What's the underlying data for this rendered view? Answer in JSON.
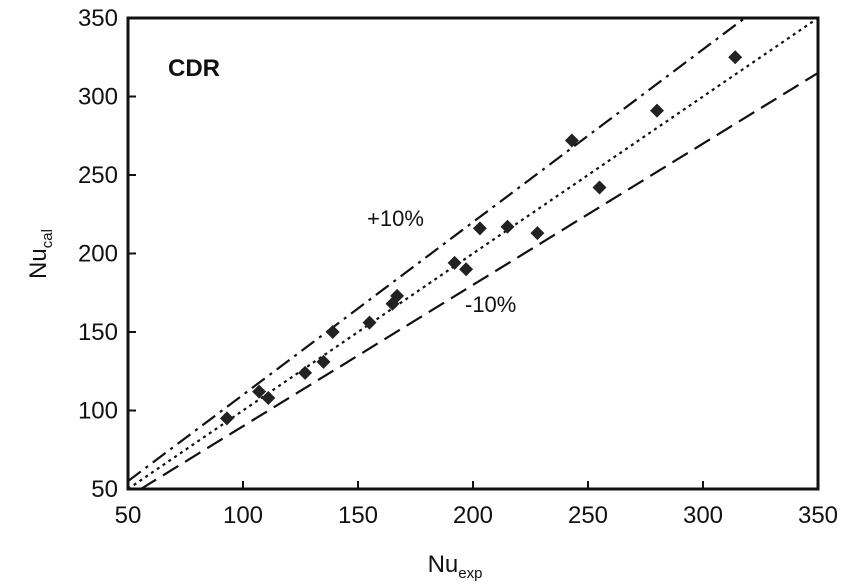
{
  "chart_data": {
    "type": "scatter",
    "title": "",
    "panel_label": "CDR",
    "xlabel": {
      "main": "Nu",
      "sub": "exp"
    },
    "ylabel": {
      "main": "Nu",
      "sub": "cal"
    },
    "xlim": [
      50,
      350
    ],
    "ylim": [
      50,
      350
    ],
    "x_ticks": [
      50,
      100,
      150,
      200,
      250,
      300,
      350
    ],
    "y_ticks": [
      50,
      100,
      150,
      200,
      250,
      300,
      350
    ],
    "grid": false,
    "legend": "none",
    "marker": "diamond",
    "marker_color": "#222222",
    "points": [
      {
        "x": 93,
        "y": 95
      },
      {
        "x": 107,
        "y": 112
      },
      {
        "x": 111,
        "y": 108
      },
      {
        "x": 127,
        "y": 124
      },
      {
        "x": 135,
        "y": 131
      },
      {
        "x": 139,
        "y": 150
      },
      {
        "x": 155,
        "y": 156
      },
      {
        "x": 165,
        "y": 168
      },
      {
        "x": 167,
        "y": 173
      },
      {
        "x": 192,
        "y": 194
      },
      {
        "x": 197,
        "y": 190
      },
      {
        "x": 203,
        "y": 216
      },
      {
        "x": 215,
        "y": 217
      },
      {
        "x": 228,
        "y": 213
      },
      {
        "x": 243,
        "y": 272
      },
      {
        "x": 255,
        "y": 242
      },
      {
        "x": 280,
        "y": 291
      },
      {
        "x": 314,
        "y": 325
      }
    ],
    "reference_lines": [
      {
        "factor": 1.0,
        "style": "dotted",
        "label": ""
      },
      {
        "factor": 1.1,
        "style": "dash-dot",
        "label": "+10%"
      },
      {
        "factor": 0.9,
        "style": "dashed",
        "label": "-10%"
      }
    ]
  }
}
